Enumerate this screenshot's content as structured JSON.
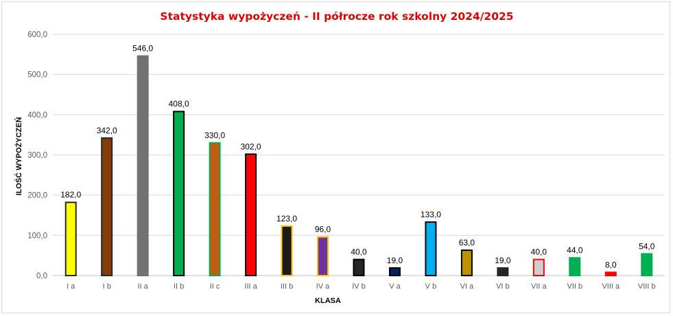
{
  "chart_data": {
    "type": "bar",
    "title": "Statystyka wypożyczeń - II półrocze rok szkolny 2024/2025",
    "xlabel": "KLASA",
    "ylabel": "ILOŚĆ WYPOŻYCZEŃ",
    "ylim": [
      0,
      600
    ],
    "yticks": [
      0,
      100,
      200,
      300,
      400,
      500,
      600
    ],
    "ytick_labels": [
      "0,0",
      "100,0",
      "200,0",
      "300,0",
      "400,0",
      "500,0",
      "600,0"
    ],
    "grid": true,
    "categories": [
      "I a",
      "I b",
      "II a",
      "II b",
      "II c",
      "III a",
      "III b",
      "IV a",
      "IV b",
      "V a",
      "V b",
      "VI a",
      "VI b",
      "VII a",
      "VII b",
      "VIII a",
      "VIII b"
    ],
    "values": [
      182,
      342,
      546,
      408,
      330,
      302,
      123,
      96,
      40,
      19,
      133,
      63,
      19,
      40,
      44,
      8,
      54
    ],
    "data_labels": [
      "182,0",
      "342,0",
      "546,0",
      "408,0",
      "330,0",
      "302,0",
      "123,0",
      "96,0",
      "40,0",
      "19,0",
      "133,0",
      "63,0",
      "19,0",
      "40,0",
      "44,0",
      "8,0",
      "54,0"
    ],
    "bar_fills": [
      "#ffff00",
      "#843c0c",
      "#767171",
      "#00b050",
      "#c55a11",
      "#ff0000",
      "#1a1a1a",
      "#7030a0",
      "#262626",
      "#002060",
      "#00b0f0",
      "#bf9000",
      "#262626",
      "#d0cece",
      "#00b050",
      "#ff0000",
      "#00b050"
    ],
    "bar_strokes": [
      "#262626",
      "#262626",
      "#767171",
      "#000000",
      "#00b050",
      "#000000",
      "#ffc000",
      "#ffc000",
      "#000000",
      "#000000",
      "#000000",
      "#000000",
      "#262626",
      "#ff0000",
      "#00b050",
      "#ff0000",
      "#00b050"
    ]
  }
}
